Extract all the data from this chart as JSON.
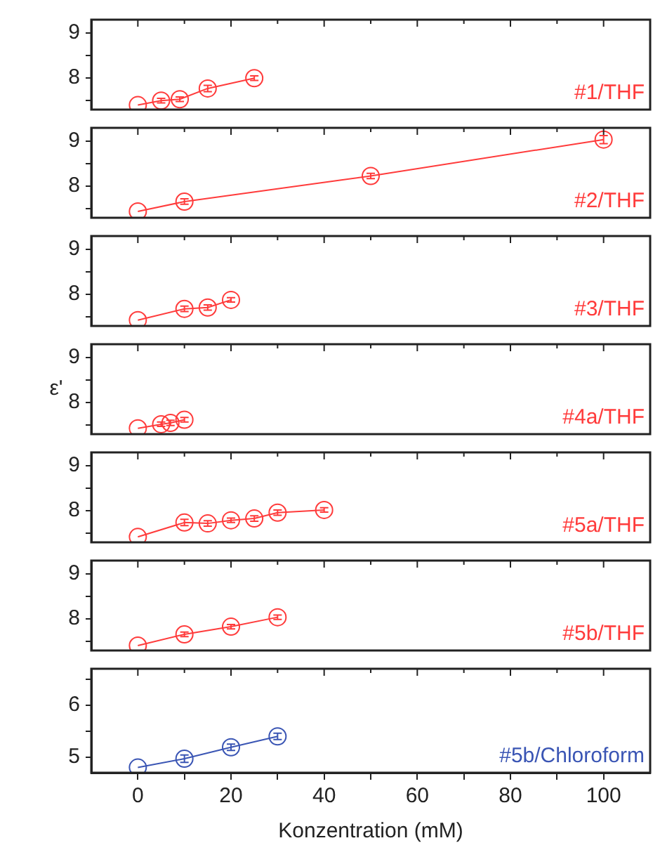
{
  "chart_data": [
    {
      "type": "line",
      "marker": "circle",
      "xlim": [
        -10,
        110
      ],
      "xticks": [
        0,
        {
          "value": 10,
          "label": null
        },
        20,
        {
          "value": 30,
          "label": null
        },
        40,
        {
          "value": 50,
          "label": null
        },
        60,
        {
          "value": 70,
          "label": null
        },
        80,
        {
          "value": 90,
          "label": null
        },
        100
      ],
      "ylim": [
        7.3,
        9.3
      ],
      "yticks": [
        {
          "value": 7.5,
          "label": null
        },
        8,
        {
          "value": 8.5,
          "label": null
        },
        9
      ],
      "tick_labels": "y",
      "series": [
        {
          "name": "#1/THF",
          "color": "#ff3b3b",
          "x": [
            0,
            5,
            9,
            15,
            25
          ],
          "values": [
            7.4,
            7.5,
            7.53,
            7.77,
            8.0
          ],
          "errors": [
            null,
            0.05,
            0.05,
            0.07,
            0.05
          ]
        }
      ]
    },
    {
      "type": "line",
      "marker": "circle",
      "xlim": [
        -10,
        110
      ],
      "xticks": [
        0,
        {
          "value": 10,
          "label": null
        },
        20,
        {
          "value": 30,
          "label": null
        },
        40,
        {
          "value": 50,
          "label": null
        },
        60,
        {
          "value": 70,
          "label": null
        },
        80,
        {
          "value": 90,
          "label": null
        },
        100
      ],
      "ylim": [
        7.3,
        9.3
      ],
      "yticks": [
        {
          "value": 7.5,
          "label": null
        },
        8,
        {
          "value": 8.5,
          "label": null
        },
        9
      ],
      "tick_labels": "y",
      "series": [
        {
          "name": "#2/THF",
          "color": "#ff3b3b",
          "x": [
            0,
            10,
            50,
            100
          ],
          "values": [
            7.44,
            7.66,
            8.23,
            9.04
          ],
          "errors": [
            null,
            0.06,
            0.06,
            0.09
          ]
        }
      ]
    },
    {
      "type": "line",
      "marker": "circle",
      "xlim": [
        -10,
        110
      ],
      "xticks": [
        0,
        {
          "value": 10,
          "label": null
        },
        20,
        {
          "value": 30,
          "label": null
        },
        40,
        {
          "value": 50,
          "label": null
        },
        60,
        {
          "value": 70,
          "label": null
        },
        80,
        {
          "value": 90,
          "label": null
        },
        100
      ],
      "ylim": [
        7.3,
        9.3
      ],
      "yticks": [
        {
          "value": 7.5,
          "label": null
        },
        8,
        {
          "value": 8.5,
          "label": null
        },
        9
      ],
      "tick_labels": "y",
      "series": [
        {
          "name": "#3/THF",
          "color": "#ff3b3b",
          "x": [
            0,
            10,
            15,
            20
          ],
          "values": [
            7.43,
            7.68,
            7.71,
            7.88
          ],
          "errors": [
            null,
            0.06,
            0.06,
            0.05
          ]
        }
      ]
    },
    {
      "type": "line",
      "marker": "circle",
      "xlim": [
        -10,
        110
      ],
      "xticks": [
        0,
        {
          "value": 10,
          "label": null
        },
        20,
        {
          "value": 30,
          "label": null
        },
        40,
        {
          "value": 50,
          "label": null
        },
        60,
        {
          "value": 70,
          "label": null
        },
        80,
        {
          "value": 90,
          "label": null
        },
        100
      ],
      "ylim": [
        7.3,
        9.3
      ],
      "yticks": [
        {
          "value": 7.5,
          "label": null
        },
        8,
        {
          "value": 8.5,
          "label": null
        },
        9
      ],
      "tick_labels": "y",
      "ylabel": "ε'",
      "series": [
        {
          "name": "#4a/THF",
          "color": "#ff3b3b",
          "x": [
            0,
            5,
            7,
            10
          ],
          "values": [
            7.43,
            7.52,
            7.55,
            7.62
          ],
          "errors": [
            null,
            0.05,
            0.06,
            0.05
          ]
        }
      ]
    },
    {
      "type": "line",
      "marker": "circle",
      "xlim": [
        -10,
        110
      ],
      "xticks": [
        0,
        {
          "value": 10,
          "label": null
        },
        20,
        {
          "value": 30,
          "label": null
        },
        40,
        {
          "value": 50,
          "label": null
        },
        60,
        {
          "value": 70,
          "label": null
        },
        80,
        {
          "value": 90,
          "label": null
        },
        100
      ],
      "ylim": [
        7.3,
        9.3
      ],
      "yticks": [
        {
          "value": 7.5,
          "label": null
        },
        8,
        {
          "value": 8.5,
          "label": null
        },
        9
      ],
      "tick_labels": "y",
      "series": [
        {
          "name": "#5a/THF",
          "color": "#ff3b3b",
          "x": [
            0,
            10,
            15,
            20,
            25,
            30,
            40
          ],
          "values": [
            7.42,
            7.74,
            7.72,
            7.79,
            7.83,
            7.96,
            8.02
          ],
          "errors": [
            null,
            0.07,
            0.06,
            0.05,
            0.06,
            0.06,
            0.05
          ]
        }
      ]
    },
    {
      "type": "line",
      "marker": "circle",
      "xlim": [
        -10,
        110
      ],
      "xticks": [
        0,
        {
          "value": 10,
          "label": null
        },
        20,
        {
          "value": 30,
          "label": null
        },
        40,
        {
          "value": 50,
          "label": null
        },
        60,
        {
          "value": 70,
          "label": null
        },
        80,
        {
          "value": 90,
          "label": null
        },
        100
      ],
      "ylim": [
        7.3,
        9.3
      ],
      "yticks": [
        {
          "value": 7.5,
          "label": null
        },
        8,
        {
          "value": 8.5,
          "label": null
        },
        9
      ],
      "tick_labels": "y",
      "series": [
        {
          "name": "#5b/THF",
          "color": "#ff3b3b",
          "x": [
            0,
            10,
            20,
            30
          ],
          "values": [
            7.41,
            7.66,
            7.83,
            8.04
          ],
          "errors": [
            null,
            0.05,
            0.05,
            0.05
          ]
        }
      ]
    },
    {
      "type": "line",
      "marker": "circle",
      "xlim": [
        -10,
        110
      ],
      "xticks": [
        0,
        {
          "value": 10,
          "label": null
        },
        20,
        {
          "value": 30,
          "label": null
        },
        40,
        {
          "value": 50,
          "label": null
        },
        60,
        {
          "value": 70,
          "label": null
        },
        80,
        {
          "value": 90,
          "label": null
        },
        100
      ],
      "ylim": [
        4.7,
        6.7
      ],
      "yticks": [
        5,
        {
          "value": 5.5,
          "label": null
        },
        6,
        {
          "value": 6.5,
          "label": null
        }
      ],
      "xlabel": "Konzentration (mM)",
      "series": [
        {
          "name": "#5b/Chloroform",
          "color": "#3a55b4",
          "x": [
            0,
            10,
            20,
            30
          ],
          "values": [
            4.8,
            4.97,
            5.19,
            5.4
          ],
          "errors": [
            null,
            0.07,
            0.06,
            0.06
          ]
        }
      ]
    }
  ]
}
